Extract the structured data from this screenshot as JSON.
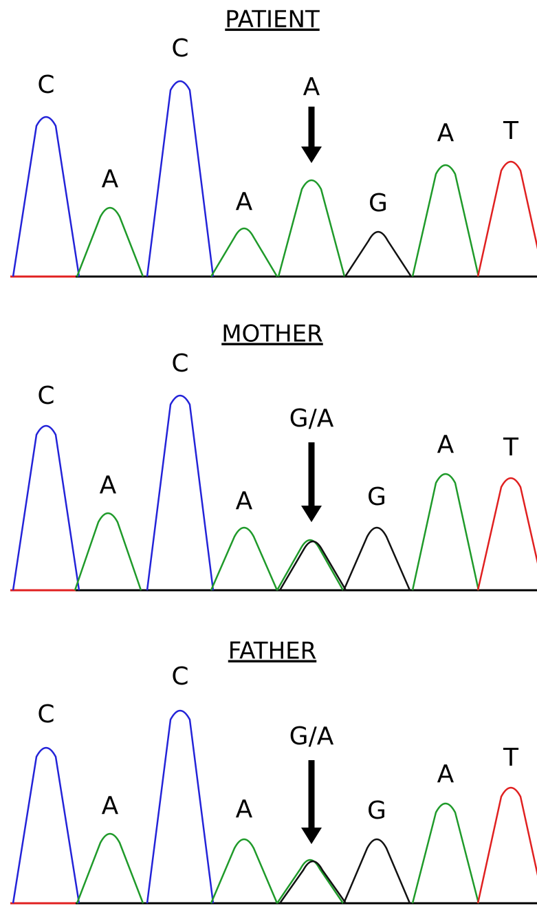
{
  "panels": [
    {
      "title": "PATIENT",
      "bases": [
        "C",
        "A",
        "C",
        "A",
        "A",
        "G",
        "A",
        "T"
      ]
    },
    {
      "title": "MOTHER",
      "bases": [
        "C",
        "A",
        "C",
        "A",
        "G/A",
        "G",
        "A",
        "T"
      ]
    },
    {
      "title": "FATHER",
      "bases": [
        "C",
        "A",
        "C",
        "A",
        "G/A",
        "G",
        "A",
        "T"
      ]
    }
  ]
}
